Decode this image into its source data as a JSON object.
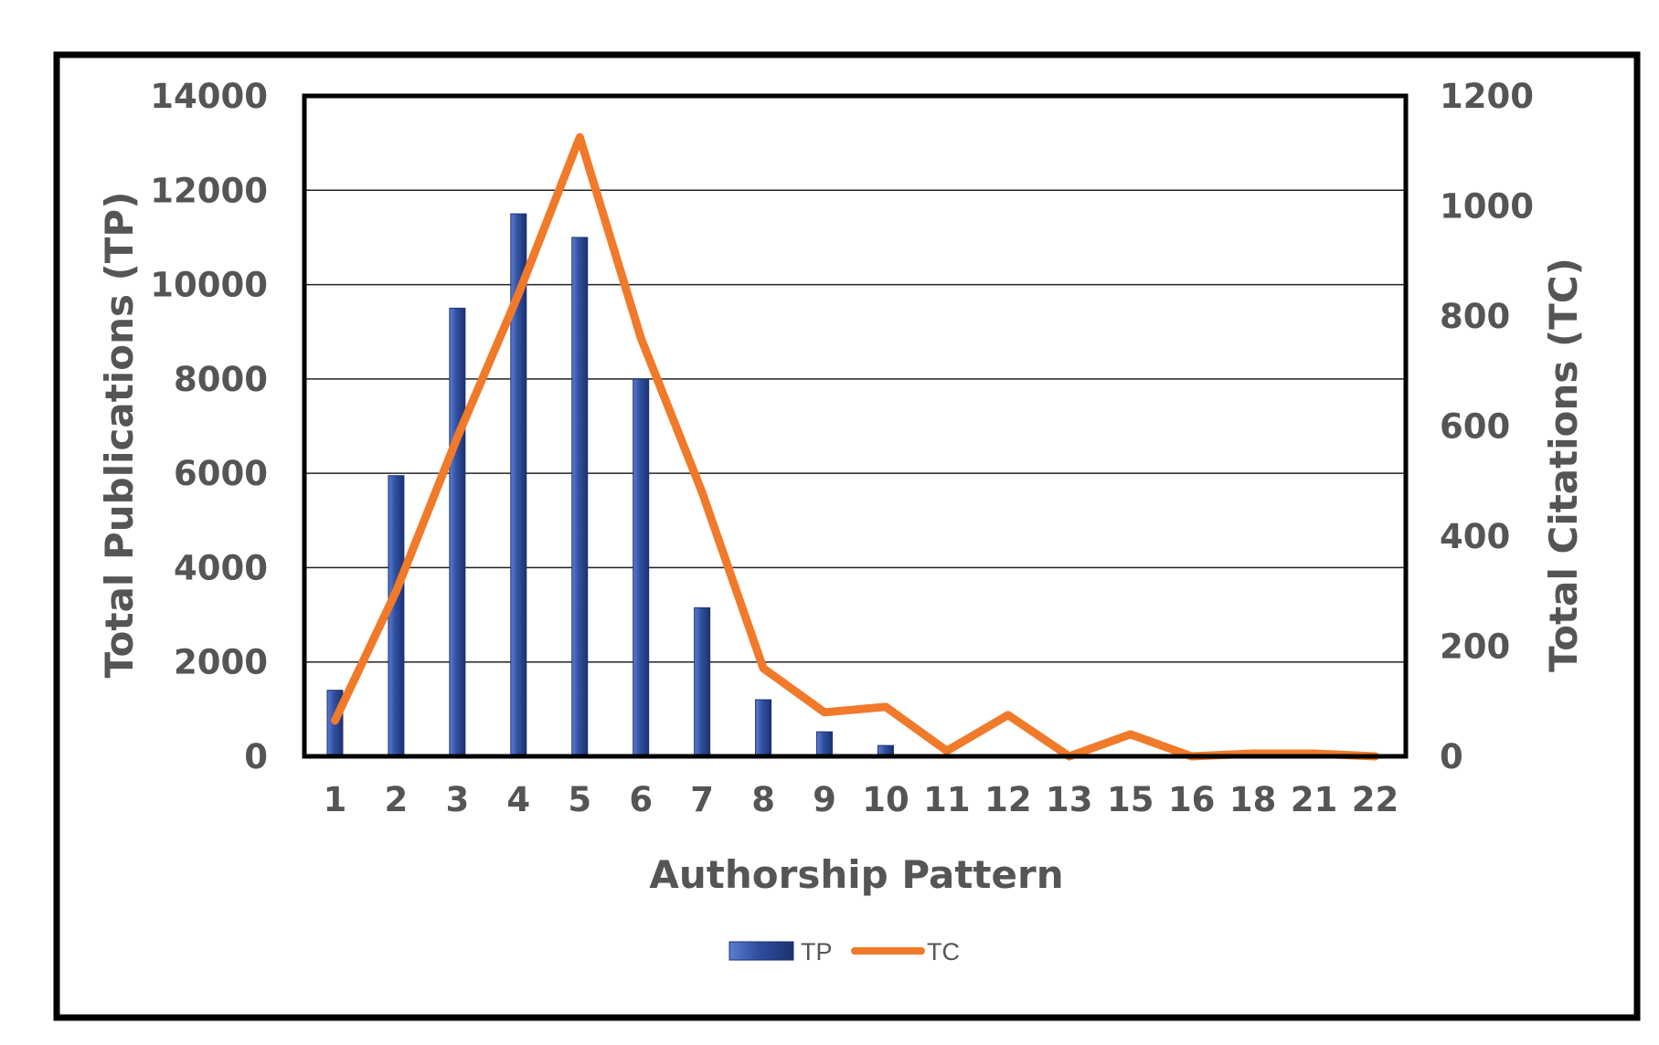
{
  "chart_data": {
    "type": "bar",
    "categories": [
      "1",
      "2",
      "3",
      "4",
      "5",
      "6",
      "7",
      "8",
      "9",
      "10",
      "11",
      "12",
      "13",
      "15",
      "16",
      "18",
      "21",
      "22"
    ],
    "series": [
      {
        "name": "TP",
        "type": "bar",
        "axis": "left",
        "color": "#2f4f9e",
        "values": [
          1400,
          5950,
          9500,
          11500,
          11000,
          8000,
          3150,
          1200,
          520,
          230,
          30,
          20,
          10,
          5,
          3,
          2,
          1,
          1
        ]
      },
      {
        "name": "TC",
        "type": "line",
        "axis": "right",
        "color": "#f07a2a",
        "values": [
          65,
          300,
          580,
          840,
          1125,
          760,
          480,
          160,
          80,
          90,
          10,
          75,
          0,
          40,
          0,
          5,
          5,
          0
        ]
      }
    ],
    "xlabel": "Authorship Pattern",
    "ylabel": "Total Publications (TP)",
    "y2label": "Total Citations (TC)",
    "ylim": [
      0,
      14000
    ],
    "y2lim": [
      0,
      1200
    ],
    "yticks": [
      "0",
      "2000",
      "4000",
      "6000",
      "8000",
      "10000",
      "12000",
      "14000"
    ],
    "y2ticks": [
      "0",
      "200",
      "400",
      "600",
      "800",
      "1000",
      "1200"
    ],
    "grid": true,
    "legend": "bottom-center"
  }
}
